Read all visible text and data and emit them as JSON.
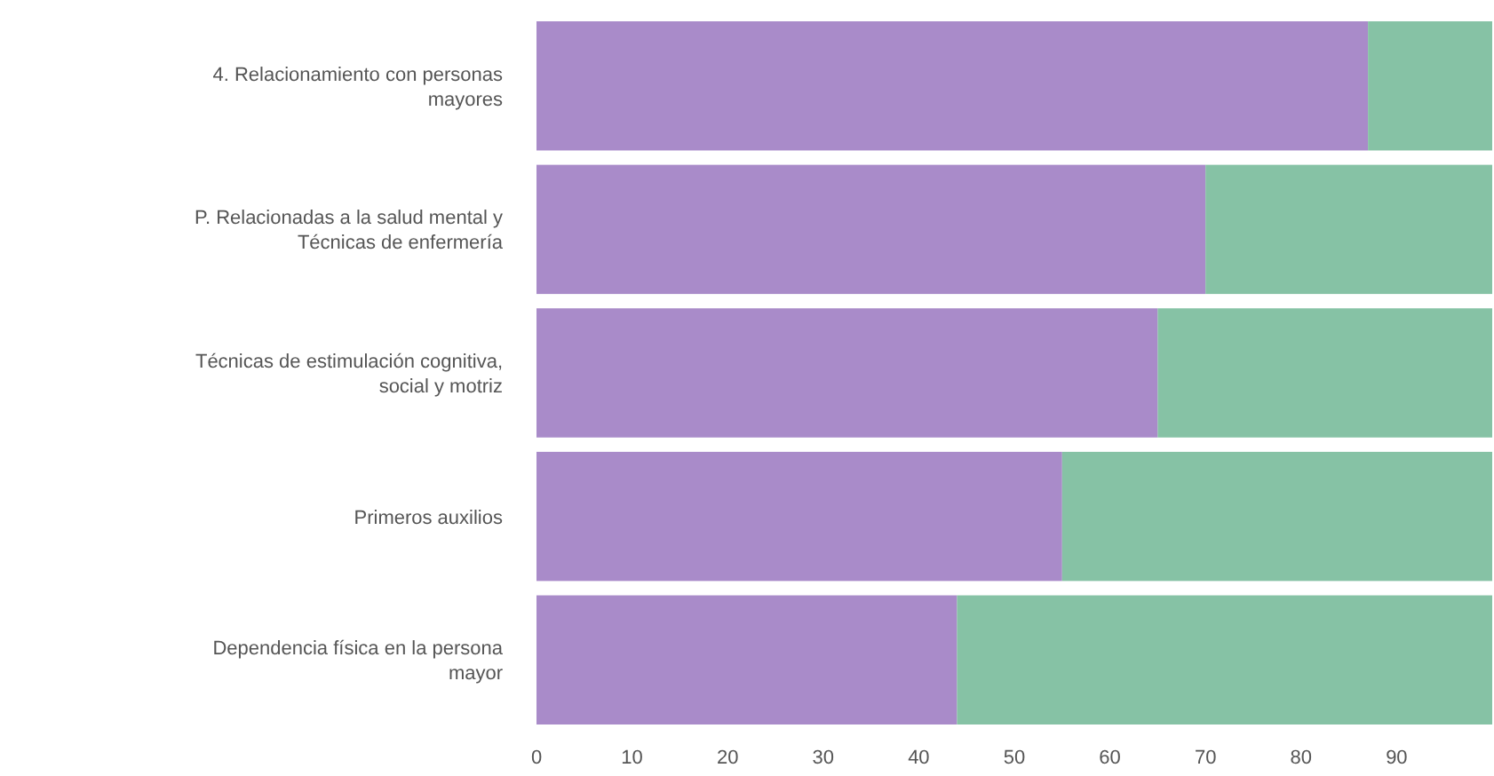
{
  "chart_data": {
    "type": "bar",
    "orientation": "horizontal",
    "stacked": true,
    "categories": [
      "4. Relacionamiento con personas mayores",
      "P. Relacionadas a la salud mental y Técnicas de enfermería",
      "Técnicas de estimulación cognitiva, social y motriz",
      "Primeros auxilios",
      "Dependencia física en la persona mayor"
    ],
    "series": [
      {
        "color": "#a98bc9",
        "values": [
          87,
          70,
          65,
          55,
          44
        ]
      },
      {
        "color": "#86c2a5",
        "values": [
          13,
          30,
          35,
          45,
          56
        ]
      }
    ],
    "xlim": [
      0,
      100
    ],
    "xticks": [
      0,
      10,
      20,
      30,
      40,
      50,
      60,
      70,
      80,
      90
    ]
  }
}
